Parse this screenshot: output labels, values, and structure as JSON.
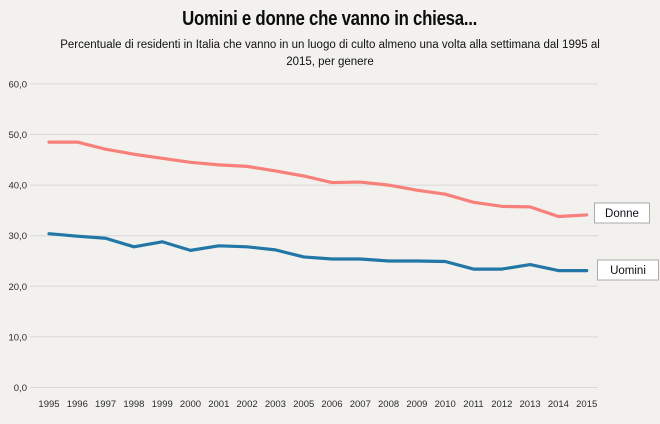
{
  "title": "Uomini e donne che vanno in chiesa...",
  "subtitle": "Percentuale di residenti in Italia che vanno in un luogo di culto almeno una volta alla settimana dal 1995 al 2015, per genere",
  "colors": {
    "background": "#f2f1ee",
    "gridline": "#d8d8d6",
    "axis_text": "#2b2b2b",
    "title_text": "#0d0d0d",
    "donne_line": "#f8807a",
    "uomini_line": "#2277a6",
    "legend_fill": "#ffffff",
    "legend_border": "#ababab",
    "legend_text": "#101018"
  },
  "chart_data": {
    "type": "line",
    "title": "Uomini e donne che vanno in chiesa...",
    "subtitle": "Percentuale di residenti in Italia che vanno in un luogo di culto almeno una volta alla settimana dal 1995 al 2015, per genere",
    "xlabel": "",
    "ylabel": "",
    "x": [
      "1995",
      "1996",
      "1997",
      "1998",
      "1999",
      "2000",
      "2001",
      "2002",
      "2003",
      "2005",
      "2006",
      "2007",
      "2008",
      "2009",
      "2010",
      "2011",
      "2012",
      "2013",
      "2014",
      "2015"
    ],
    "x_note": "2004 is absent from the axis",
    "series": [
      {
        "name": "Donne",
        "color": "#f8807a",
        "values": [
          48.5,
          48.5,
          47.1,
          46.1,
          45.3,
          44.5,
          44.0,
          43.7,
          42.8,
          41.8,
          40.5,
          40.6,
          40.0,
          39.0,
          38.2,
          36.6,
          35.8,
          35.7,
          33.8,
          34.1
        ]
      },
      {
        "name": "Uomini",
        "color": "#2277a6",
        "values": [
          30.4,
          29.9,
          29.5,
          27.8,
          28.8,
          27.1,
          28.0,
          27.8,
          27.2,
          25.8,
          25.4,
          25.4,
          25.0,
          25.0,
          24.9,
          23.4,
          23.4,
          24.3,
          23.1,
          23.1
        ]
      }
    ],
    "ylim": [
      0,
      60
    ],
    "yticks": [
      0,
      10,
      20,
      30,
      40,
      50,
      60
    ],
    "ytick_labels": [
      "0,0",
      "10,0",
      "20,0",
      "30,0",
      "40,0",
      "50,0",
      "60,0"
    ],
    "grid": true,
    "legend_position": "right"
  }
}
